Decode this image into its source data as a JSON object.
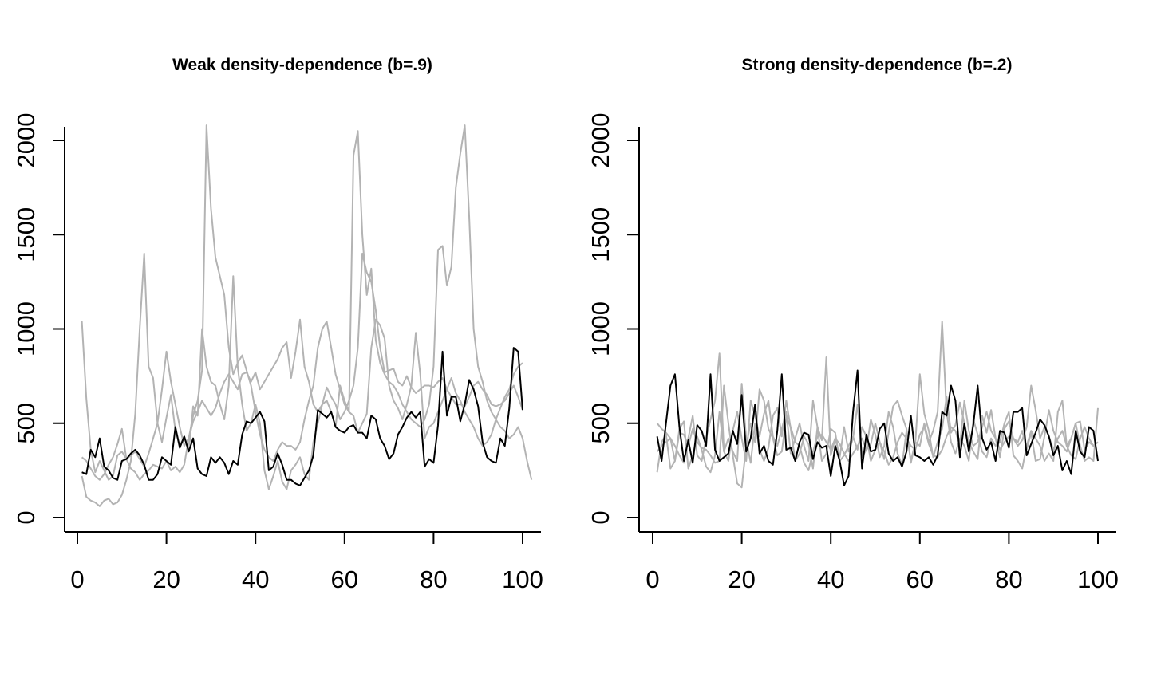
{
  "colors": {
    "highlight": "#000000",
    "other": "#b3b3b3",
    "axis": "#000000",
    "background": "#ffffff"
  },
  "chart_data": [
    {
      "type": "line",
      "title": "Weak density-dependence (b=.9)",
      "xlabel": "",
      "ylabel": "",
      "xlim": [
        1,
        100
      ],
      "ylim": [
        0,
        2000
      ],
      "x_ticks": [
        0,
        20,
        40,
        60,
        80,
        100
      ],
      "y_ticks": [
        0,
        500,
        1000,
        1500,
        2000
      ],
      "x_tick_labels": [
        "0",
        "20",
        "40",
        "60",
        "80",
        "100"
      ],
      "y_tick_labels": [
        "0",
        "500",
        "1000",
        "1500",
        "2000"
      ],
      "grid": false,
      "x_start": 1,
      "x_step": 1,
      "series": [
        {
          "color": "#b3b3b3",
          "values": [
            1040,
            630,
            360,
            240,
            300,
            250,
            200,
            220,
            330,
            350,
            310,
            260,
            240,
            200,
            230,
            250,
            280,
            270,
            260,
            300,
            250,
            270,
            240,
            280,
            420,
            510,
            560,
            620,
            580,
            540,
            580,
            660,
            720,
            760,
            720,
            680,
            760,
            770,
            720,
            770,
            680,
            720,
            760,
            800,
            840,
            900,
            930,
            740,
            880,
            1050,
            800,
            720,
            600,
            560,
            600,
            690,
            640,
            600,
            520,
            560,
            620,
            700,
            900,
            1400,
            1300,
            1250,
            1100,
            900,
            770,
            780,
            790,
            720,
            700,
            750,
            690,
            660,
            680,
            700,
            700,
            690,
            720,
            740,
            680,
            640,
            600,
            600,
            590,
            640,
            700,
            720,
            680,
            650,
            600,
            590,
            600,
            620,
            660,
            700,
            640,
            570
          ]
        },
        {
          "color": "#b3b3b3",
          "values": [
            220,
            110,
            90,
            80,
            60,
            90,
            100,
            70,
            80,
            120,
            200,
            300,
            550,
            1000,
            1400,
            800,
            740,
            500,
            400,
            530,
            650,
            460,
            380,
            430,
            350,
            590,
            540,
            1000,
            800,
            720,
            700,
            600,
            520,
            700,
            1280,
            800,
            600,
            460,
            500,
            600,
            500,
            250,
            150,
            220,
            300,
            190,
            150,
            250,
            280,
            320,
            230,
            200,
            400,
            500,
            600,
            620,
            560,
            480,
            700,
            620,
            560,
            540,
            450,
            500,
            550,
            900,
            1050,
            1020,
            950,
            700,
            620,
            580,
            520,
            600,
            700,
            980,
            760,
            420,
            480,
            500,
            560,
            620,
            680,
            740,
            660,
            620,
            560,
            520,
            480,
            420,
            380,
            400,
            440,
            520,
            580,
            640,
            680,
            760,
            800,
            820
          ]
        },
        {
          "color": "#b3b3b3",
          "values": [
            320,
            300,
            260,
            220,
            200,
            230,
            280,
            320,
            390,
            470,
            310,
            330,
            350,
            310,
            270,
            340,
            420,
            500,
            680,
            880,
            720,
            600,
            480,
            380,
            420,
            540,
            620,
            780,
            2080,
            1640,
            1380,
            1280,
            1180,
            900,
            760,
            820,
            860,
            780,
            700,
            560,
            440,
            360,
            320,
            300,
            360,
            400,
            380,
            380,
            360,
            400,
            520,
            620,
            700,
            900,
            1000,
            1040,
            900,
            760,
            680,
            600,
            560,
            1920,
            2050,
            1500,
            1180,
            1320,
            940,
            820,
            760,
            720,
            700,
            660,
            600,
            560,
            520,
            500,
            480,
            520,
            600,
            800,
            1420,
            1440,
            1230,
            1330,
            1750,
            1930,
            2080,
            1600,
            1000,
            800,
            720,
            620,
            560,
            520,
            480,
            460,
            420,
            440,
            480,
            420,
            300,
            200
          ]
        },
        {
          "color": "#000000",
          "values": [
            240,
            230,
            360,
            320,
            420,
            270,
            250,
            210,
            200,
            300,
            310,
            340,
            360,
            330,
            280,
            200,
            200,
            230,
            320,
            300,
            280,
            480,
            370,
            430,
            350,
            420,
            260,
            230,
            220,
            320,
            290,
            320,
            290,
            230,
            300,
            280,
            440,
            510,
            500,
            530,
            560,
            510,
            250,
            270,
            340,
            280,
            200,
            200,
            180,
            170,
            210,
            250,
            330,
            570,
            550,
            530,
            560,
            480,
            460,
            450,
            480,
            490,
            450,
            450,
            420,
            540,
            520,
            420,
            380,
            310,
            340,
            440,
            480,
            530,
            560,
            530,
            560,
            270,
            310,
            290,
            490,
            880,
            540,
            640,
            640,
            510,
            600,
            730,
            680,
            590,
            400,
            320,
            300,
            290,
            420,
            380,
            580,
            900,
            880,
            570
          ]
        }
      ]
    },
    {
      "type": "line",
      "title": "Strong density-dependence (b=.2)",
      "xlabel": "",
      "ylabel": "",
      "xlim": [
        1,
        100
      ],
      "ylim": [
        0,
        2000
      ],
      "x_ticks": [
        0,
        20,
        40,
        60,
        80,
        100
      ],
      "y_ticks": [
        0,
        500,
        1000,
        1500,
        2000
      ],
      "x_tick_labels": [
        "0",
        "20",
        "40",
        "60",
        "80",
        "100"
      ],
      "y_tick_labels": [
        "0",
        "500",
        "1000",
        "1500",
        "2000"
      ],
      "grid": false,
      "x_start": 1,
      "x_step": 1,
      "series": [
        {
          "color": "#b3b3b3",
          "values": [
            500,
            470,
            450,
            420,
            380,
            330,
            290,
            420,
            540,
            330,
            300,
            420,
            520,
            620,
            870,
            350,
            300,
            460,
            560,
            420,
            300,
            620,
            540,
            430,
            550,
            620,
            430,
            380,
            470,
            560,
            340,
            420,
            500,
            380,
            300,
            620,
            480,
            410,
            850,
            330,
            420,
            320,
            480,
            350,
            420,
            600,
            320,
            360,
            520,
            440,
            320,
            380,
            560,
            480,
            340,
            280,
            460,
            300,
            400,
            380,
            500,
            400,
            460,
            560,
            1040,
            560,
            400,
            340,
            420,
            380,
            300,
            520,
            440,
            350,
            320,
            420,
            380,
            400,
            500,
            560,
            330,
            300,
            260,
            380,
            460,
            420,
            380,
            300,
            340,
            300,
            560,
            620,
            380,
            420,
            500,
            380,
            300,
            320,
            300,
            580
          ]
        },
        {
          "color": "#b3b3b3",
          "values": [
            240,
            400,
            440,
            260,
            300,
            470,
            510,
            260,
            330,
            430,
            360,
            270,
            240,
            330,
            560,
            350,
            420,
            350,
            300,
            710,
            420,
            290,
            500,
            360,
            300,
            370,
            540,
            580,
            430,
            620,
            470,
            300,
            340,
            430,
            390,
            260,
            480,
            300,
            340,
            470,
            450,
            300,
            330,
            380,
            430,
            360,
            480,
            430,
            300,
            360,
            400,
            310,
            450,
            590,
            620,
            540,
            470,
            290,
            400,
            760,
            550,
            460,
            320,
            400,
            470,
            640,
            450,
            490,
            610,
            500,
            400,
            350,
            310,
            540,
            450,
            570,
            420,
            360,
            400,
            430,
            420,
            400,
            460,
            360,
            450,
            300,
            310,
            430,
            570,
            460,
            400,
            380,
            350,
            420,
            500,
            510,
            360,
            400,
            380,
            400
          ]
        },
        {
          "color": "#b3b3b3",
          "values": [
            350,
            380,
            400,
            420,
            300,
            450,
            440,
            380,
            470,
            400,
            370,
            360,
            330,
            290,
            300,
            700,
            500,
            330,
            180,
            160,
            380,
            500,
            400,
            680,
            620,
            470,
            420,
            330,
            350,
            530,
            480,
            400,
            380,
            290,
            250,
            350,
            430,
            440,
            400,
            360,
            420,
            390,
            340,
            300,
            340,
            380,
            420,
            360,
            390,
            500,
            400,
            350,
            280,
            320,
            400,
            450,
            420,
            380,
            360,
            440,
            480,
            390,
            330,
            320,
            360,
            430,
            480,
            460,
            380,
            620,
            460,
            380,
            400,
            480,
            560,
            460,
            420,
            320,
            470,
            510,
            420,
            380,
            410,
            480,
            700,
            570,
            420,
            480,
            430,
            360,
            420,
            460,
            380,
            330,
            310,
            420,
            480,
            420,
            380,
            400
          ]
        },
        {
          "color": "#000000",
          "values": [
            430,
            300,
            500,
            700,
            760,
            480,
            300,
            410,
            290,
            490,
            460,
            380,
            760,
            360,
            300,
            320,
            340,
            460,
            390,
            650,
            350,
            420,
            600,
            340,
            380,
            300,
            280,
            460,
            760,
            360,
            370,
            300,
            400,
            450,
            440,
            310,
            400,
            370,
            380,
            220,
            380,
            300,
            170,
            220,
            560,
            780,
            260,
            440,
            350,
            360,
            470,
            500,
            340,
            300,
            320,
            270,
            350,
            540,
            330,
            320,
            300,
            320,
            280,
            330,
            560,
            540,
            700,
            620,
            320,
            500,
            350,
            490,
            700,
            420,
            360,
            400,
            300,
            460,
            450,
            370,
            560,
            560,
            580,
            330,
            390,
            450,
            520,
            490,
            430,
            330,
            380,
            250,
            300,
            230,
            460,
            350,
            320,
            480,
            460,
            300
          ]
        }
      ]
    }
  ]
}
